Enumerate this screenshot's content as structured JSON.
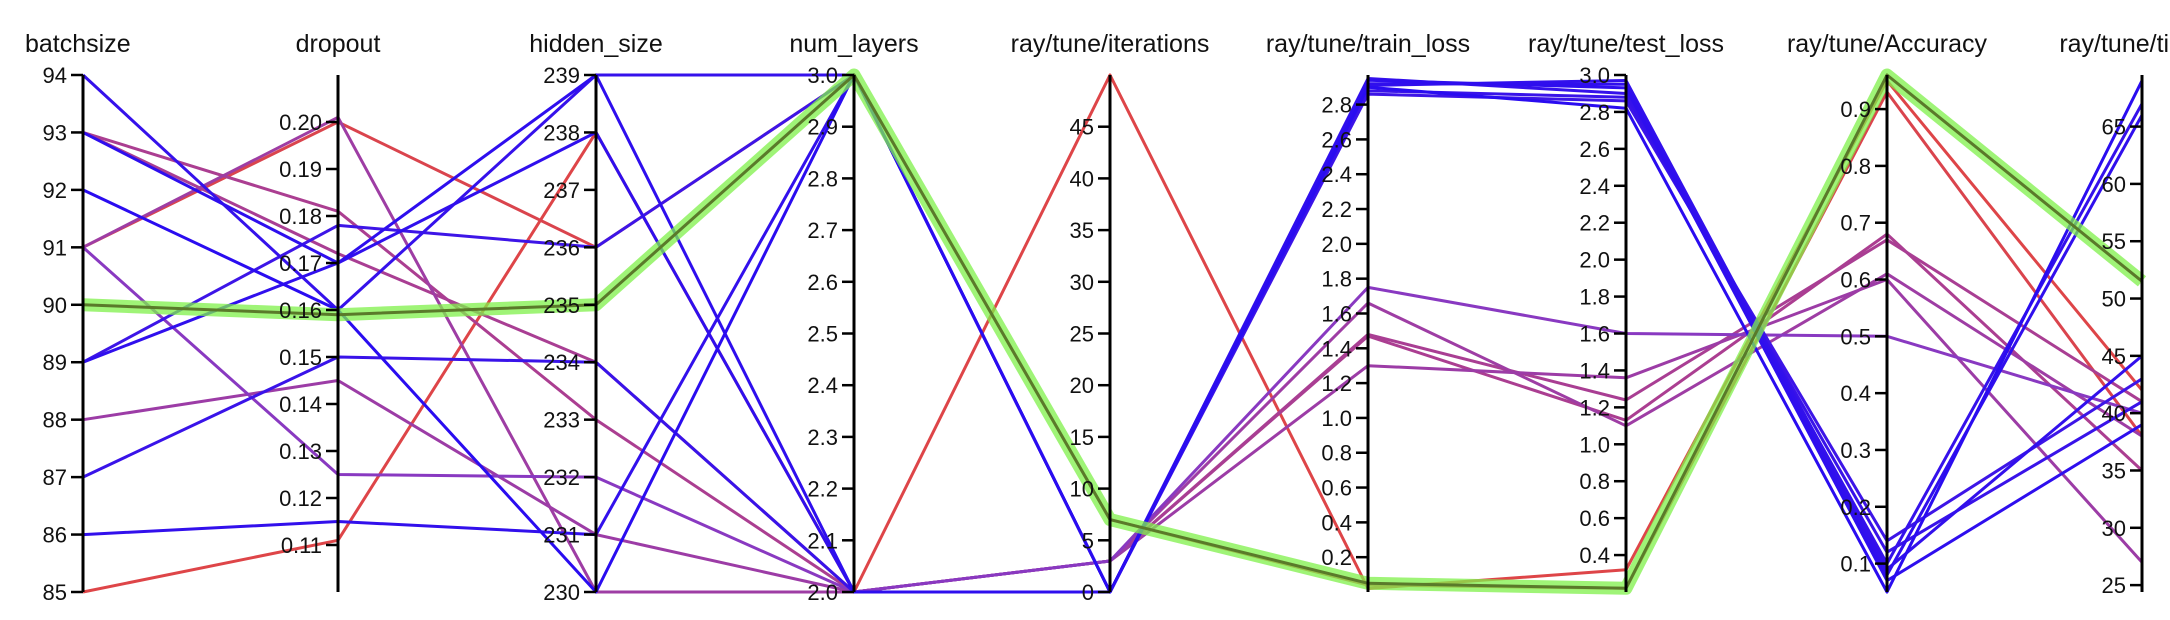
{
  "chart_data": {
    "type": "parallel_coordinates",
    "axes": [
      {
        "key": "batchsize",
        "label": "batchsize",
        "range": [
          85,
          94
        ],
        "ticks": [
          "85",
          "86",
          "87",
          "88",
          "89",
          "90",
          "91",
          "92",
          "93",
          "94"
        ]
      },
      {
        "key": "dropout",
        "label": "dropout",
        "range": [
          0.1,
          0.21
        ],
        "ticks": [
          "0.11",
          "0.12",
          "0.13",
          "0.14",
          "0.15",
          "0.16",
          "0.17",
          "0.18",
          "0.19",
          "0.20"
        ]
      },
      {
        "key": "hidden_size",
        "label": "hidden_size",
        "range": [
          230,
          239
        ],
        "ticks": [
          "230",
          "231",
          "232",
          "233",
          "234",
          "235",
          "236",
          "237",
          "238",
          "239"
        ]
      },
      {
        "key": "num_layers",
        "label": "num_layers",
        "range": [
          2.0,
          3.0
        ],
        "ticks": [
          "2.0",
          "2.1",
          "2.2",
          "2.3",
          "2.4",
          "2.5",
          "2.6",
          "2.7",
          "2.8",
          "2.9",
          "3.0"
        ]
      },
      {
        "key": "iterations",
        "label": "ray/tune/iterations",
        "range": [
          0,
          50
        ],
        "ticks": [
          "0",
          "5",
          "10",
          "15",
          "20",
          "25",
          "30",
          "35",
          "40",
          "45"
        ]
      },
      {
        "key": "train_loss",
        "label": "ray/tune/train_loss",
        "range": [
          0.0,
          2.97
        ],
        "ticks": [
          "0.2",
          "0.4",
          "0.6",
          "0.8",
          "1.0",
          "1.2",
          "1.4",
          "1.6",
          "1.8",
          "2.0",
          "2.2",
          "2.4",
          "2.6",
          "2.8"
        ]
      },
      {
        "key": "test_loss",
        "label": "ray/tune/test_loss",
        "range": [
          0.2,
          3.0
        ],
        "ticks": [
          "0.4",
          "0.6",
          "0.8",
          "1.0",
          "1.2",
          "1.4",
          "1.6",
          "1.8",
          "2.0",
          "2.2",
          "2.4",
          "2.6",
          "2.8",
          "3.0"
        ]
      },
      {
        "key": "accuracy",
        "label": "ray/tune/Accuracy",
        "range": [
          0.05,
          0.96
        ],
        "ticks": [
          "0.1",
          "0.2",
          "0.3",
          "0.4",
          "0.5",
          "0.6",
          "0.7",
          "0.8",
          "0.9"
        ]
      },
      {
        "key": "time_total",
        "label": "ray/tune/time_t",
        "range": [
          24.4,
          69.5
        ],
        "ticks": [
          "25",
          "30",
          "35",
          "40",
          "45",
          "50",
          "55",
          "60",
          "65"
        ]
      }
    ],
    "color_by": "accuracy",
    "color_scale": {
      "low": "#2a0cf0",
      "mid": "#8a3ac0",
      "high": "#e04545"
    },
    "highlight": {
      "color": "#7ff04a",
      "trial_index": 0
    },
    "trials": [
      {
        "batchsize": 90,
        "dropout": 0.159,
        "hidden_size": 235,
        "num_layers": 3.0,
        "iterations": 7,
        "train_loss": 0.05,
        "test_loss": 0.22,
        "accuracy": 0.96,
        "time_total": 51.5
      },
      {
        "batchsize": 85,
        "dropout": 0.111,
        "hidden_size": 238,
        "num_layers": 2.0,
        "iterations": 50,
        "train_loss": 0.02,
        "test_loss": 0.32,
        "accuracy": 0.95,
        "time_total": 42
      },
      {
        "batchsize": 91,
        "dropout": 0.2,
        "hidden_size": 236,
        "num_layers": 3.0,
        "iterations": 7,
        "train_loss": 0.04,
        "test_loss": 0.22,
        "accuracy": 0.93,
        "time_total": 38
      },
      {
        "batchsize": 93,
        "dropout": 0.181,
        "hidden_size": 233,
        "num_layers": 2.0,
        "iterations": 3,
        "train_loss": 1.47,
        "test_loss": 1.13,
        "accuracy": 0.68,
        "time_total": 35
      },
      {
        "batchsize": 91,
        "dropout": 0.125,
        "hidden_size": 232,
        "num_layers": 2.0,
        "iterations": 3,
        "train_loss": 1.75,
        "test_loss": 1.6,
        "accuracy": 0.5,
        "time_total": 40
      },
      {
        "batchsize": 88,
        "dropout": 0.145,
        "hidden_size": 231,
        "num_layers": 2.0,
        "iterations": 3,
        "train_loss": 1.3,
        "test_loss": 1.36,
        "accuracy": 0.6,
        "time_total": 27
      },
      {
        "batchsize": 93,
        "dropout": 0.172,
        "hidden_size": 234,
        "num_layers": 2.0,
        "iterations": 3,
        "train_loss": 1.48,
        "test_loss": 1.24,
        "accuracy": 0.67,
        "time_total": 41
      },
      {
        "batchsize": 91,
        "dropout": 0.201,
        "hidden_size": 230,
        "num_layers": 2.0,
        "iterations": 3,
        "train_loss": 1.66,
        "test_loss": 1.1,
        "accuracy": 0.61,
        "time_total": 38
      },
      {
        "batchsize": 94,
        "dropout": 0.16,
        "hidden_size": 239,
        "num_layers": 3.0,
        "iterations": 0,
        "train_loss": 2.95,
        "test_loss": 2.9,
        "accuracy": 0.1,
        "time_total": 67
      },
      {
        "batchsize": 92,
        "dropout": 0.16,
        "hidden_size": 230,
        "num_layers": 3.0,
        "iterations": 0,
        "train_loss": 2.9,
        "test_loss": 2.82,
        "accuracy": 0.05,
        "time_total": 69
      },
      {
        "batchsize": 89,
        "dropout": 0.17,
        "hidden_size": 238,
        "num_layers": 2.0,
        "iterations": 0,
        "train_loss": 2.92,
        "test_loss": 2.95,
        "accuracy": 0.08,
        "time_total": 66
      },
      {
        "batchsize": 87,
        "dropout": 0.15,
        "hidden_size": 234,
        "num_layers": 2.0,
        "iterations": 0,
        "train_loss": 2.88,
        "test_loss": 2.88,
        "accuracy": 0.12,
        "time_total": 41
      },
      {
        "batchsize": 86,
        "dropout": 0.115,
        "hidden_size": 231,
        "num_layers": 3.0,
        "iterations": 0,
        "train_loss": 2.91,
        "test_loss": 2.97,
        "accuracy": 0.09,
        "time_total": 45
      },
      {
        "batchsize": 89,
        "dropout": 0.178,
        "hidden_size": 236,
        "num_layers": 3.0,
        "iterations": 0,
        "train_loss": 2.86,
        "test_loss": 2.86,
        "accuracy": 0.14,
        "time_total": 43
      },
      {
        "batchsize": 93,
        "dropout": 0.17,
        "hidden_size": 239,
        "num_layers": 2.0,
        "iterations": 0,
        "train_loss": 2.94,
        "test_loss": 2.93,
        "accuracy": 0.07,
        "time_total": 39
      }
    ]
  }
}
